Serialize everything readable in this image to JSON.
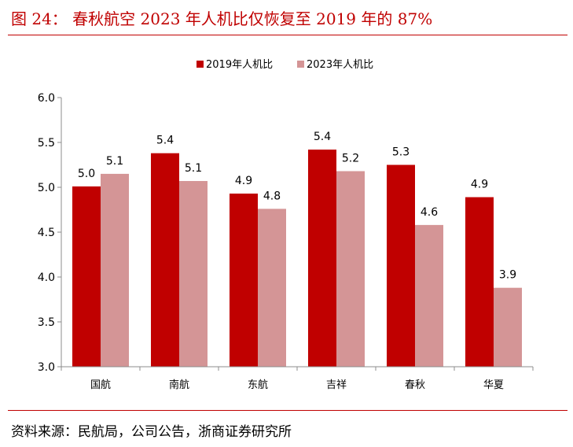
{
  "figure": {
    "title": "图 24：  春秋航空 2023 年人机比仅恢复至 2019 年的 87%",
    "source": "资料来源：民航局，公司公告，浙商证券研究所"
  },
  "colors": {
    "series_2019": "#c00000",
    "series_2023": "#d49596",
    "accent": "#c00000"
  },
  "chart_data": {
    "type": "bar",
    "title": "春秋航空 2023 年人机比仅恢复至 2019 年的 87%",
    "categories": [
      "国航",
      "南航",
      "东航",
      "吉祥",
      "春秋",
      "华夏"
    ],
    "series": [
      {
        "name": "2019年人机比",
        "values": [
          5.01,
          5.38,
          4.93,
          5.42,
          5.25,
          4.89
        ],
        "labels": [
          "5.0",
          "5.4",
          "4.9",
          "5.4",
          "5.3",
          "4.9"
        ]
      },
      {
        "name": "2023年人机比",
        "values": [
          5.15,
          5.07,
          4.76,
          5.18,
          4.58,
          3.88
        ],
        "labels": [
          "5.1",
          "5.1",
          "4.8",
          "5.2",
          "4.6",
          "3.9"
        ]
      }
    ],
    "ylim": [
      3.0,
      6.0
    ],
    "yticks": [
      "3.0",
      "3.5",
      "4.0",
      "4.5",
      "5.0",
      "5.5",
      "6.0"
    ],
    "legend": "top-center",
    "xlabel": "",
    "ylabel": ""
  }
}
